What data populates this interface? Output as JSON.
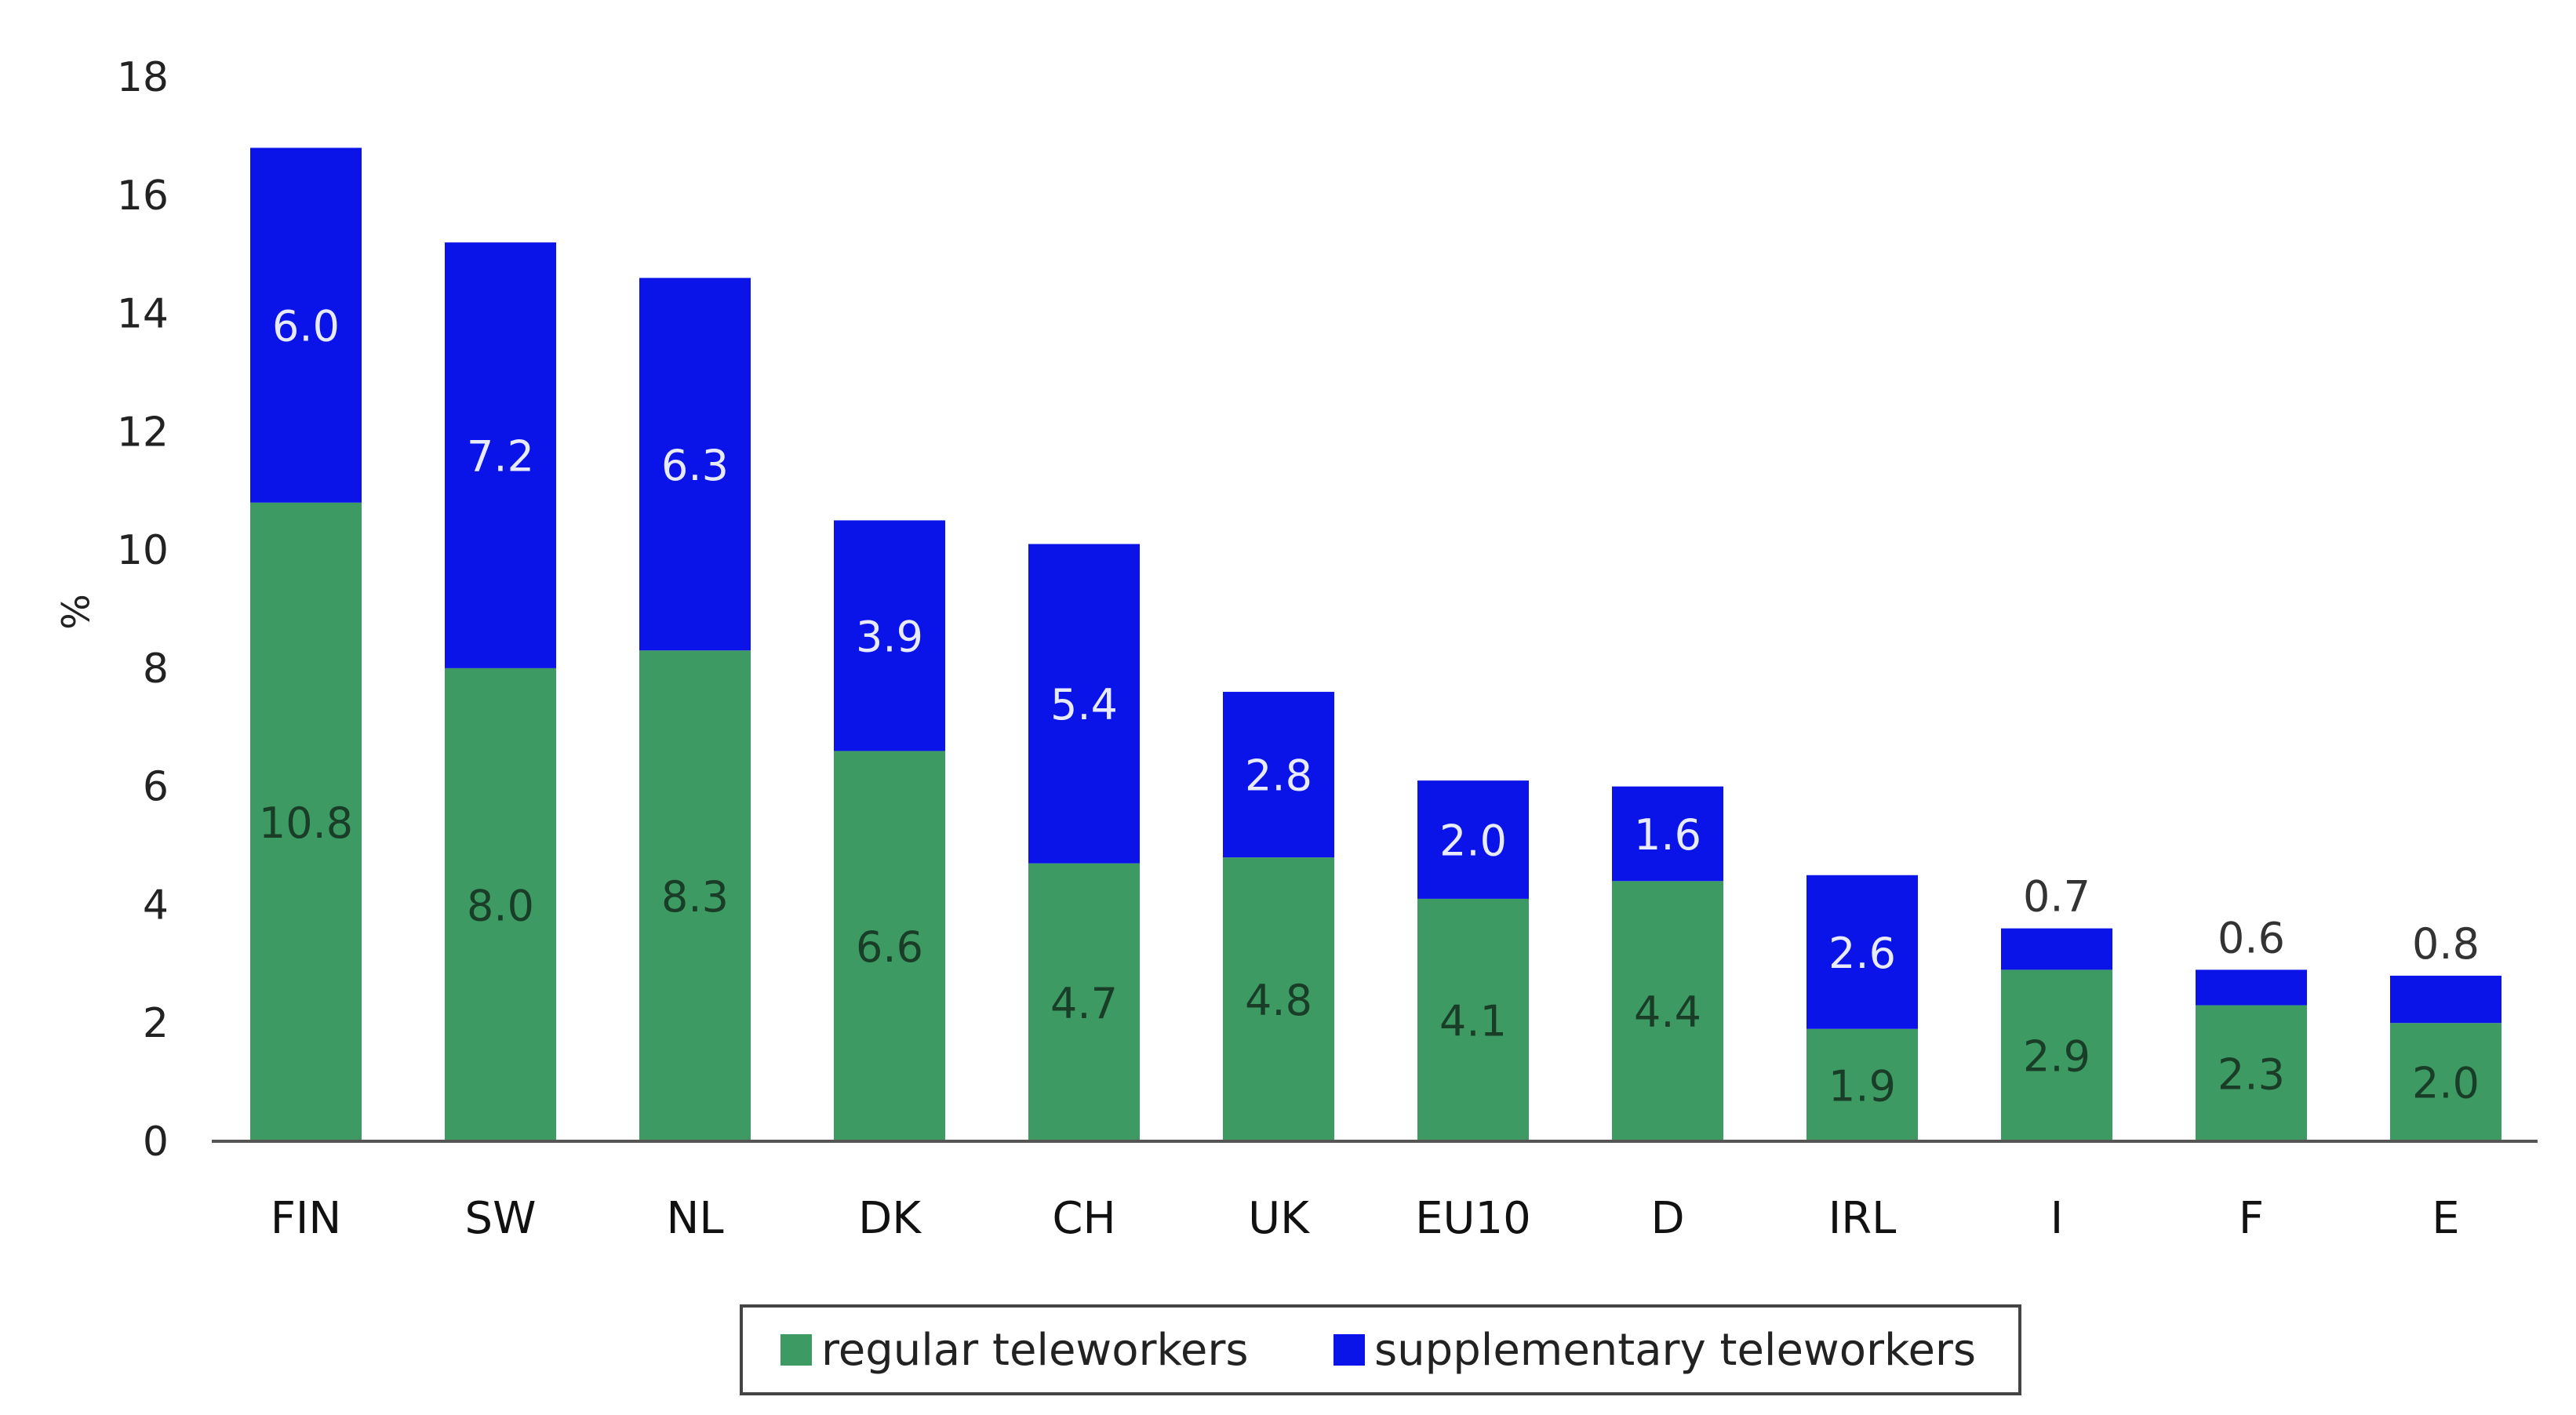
{
  "chart_data": {
    "type": "bar",
    "stacked": true,
    "title": "",
    "xlabel": "",
    "ylabel": "%",
    "ylim": [
      0,
      18
    ],
    "yticks": [
      0,
      2,
      4,
      6,
      8,
      10,
      12,
      14,
      16,
      18
    ],
    "grid": false,
    "legend_position": "bottom",
    "categories": [
      "FIN",
      "SW",
      "NL",
      "DK",
      "CH",
      "UK",
      "EU10",
      "D",
      "IRL",
      "I",
      "F",
      "E"
    ],
    "series": [
      {
        "name": "regular teleworkers",
        "color": "#3d9a63",
        "label_color": "#1a3d28",
        "values": [
          10.8,
          8.0,
          8.3,
          6.6,
          4.7,
          4.8,
          4.1,
          4.4,
          1.9,
          2.9,
          2.3,
          2.0
        ],
        "value_labels": [
          "10.8",
          "8.0",
          "8.3",
          "6.6",
          "4.7",
          "4.8",
          "4.1",
          "4.4",
          "1.9",
          "2.9",
          "2.3",
          "2.0"
        ]
      },
      {
        "name": "supplementary teleworkers",
        "color": "#0a14e8",
        "label_color": "#e8eaff",
        "label_outside_color": "#333333",
        "values": [
          6.0,
          7.2,
          6.3,
          3.9,
          5.4,
          2.8,
          2.0,
          1.6,
          2.6,
          0.7,
          0.6,
          0.8
        ],
        "value_labels": [
          "6.0",
          "7.2",
          "6.3",
          "3.9",
          "5.4",
          "2.8",
          "2.0",
          "1.6",
          "2.6",
          "0.7",
          "0.6",
          "0.8"
        ]
      }
    ]
  }
}
